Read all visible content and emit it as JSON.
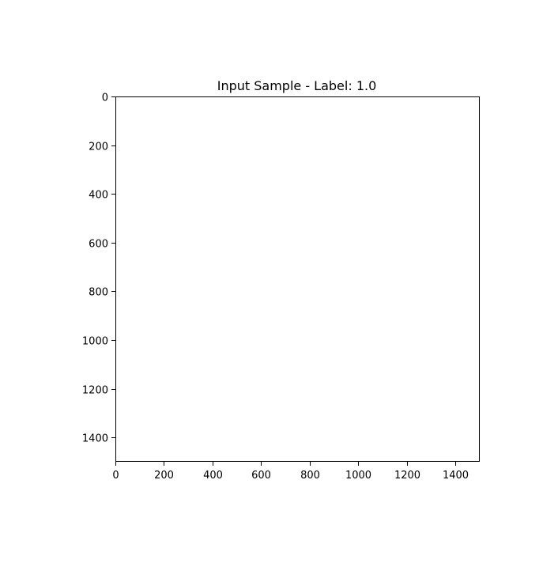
{
  "chart_data": {
    "type": "heatmap",
    "title": "Input Sample - Label: 1.0",
    "xlabel": "",
    "ylabel": "",
    "xlim": [
      0,
      1500
    ],
    "ylim": [
      1500,
      0
    ],
    "x_ticks": [
      0,
      200,
      400,
      600,
      800,
      1000,
      1200,
      1400
    ],
    "y_ticks": [
      0,
      200,
      400,
      600,
      800,
      1000,
      1200,
      1400
    ],
    "x_tick_labels": [
      "0",
      "200",
      "400",
      "600",
      "800",
      "1000",
      "1200",
      "1400"
    ],
    "y_tick_labels": [
      "0",
      "200",
      "400",
      "600",
      "800",
      "1000",
      "1200",
      "1400"
    ],
    "grid": false,
    "image_fill": "#ffffff",
    "axis_color": "#000000"
  }
}
